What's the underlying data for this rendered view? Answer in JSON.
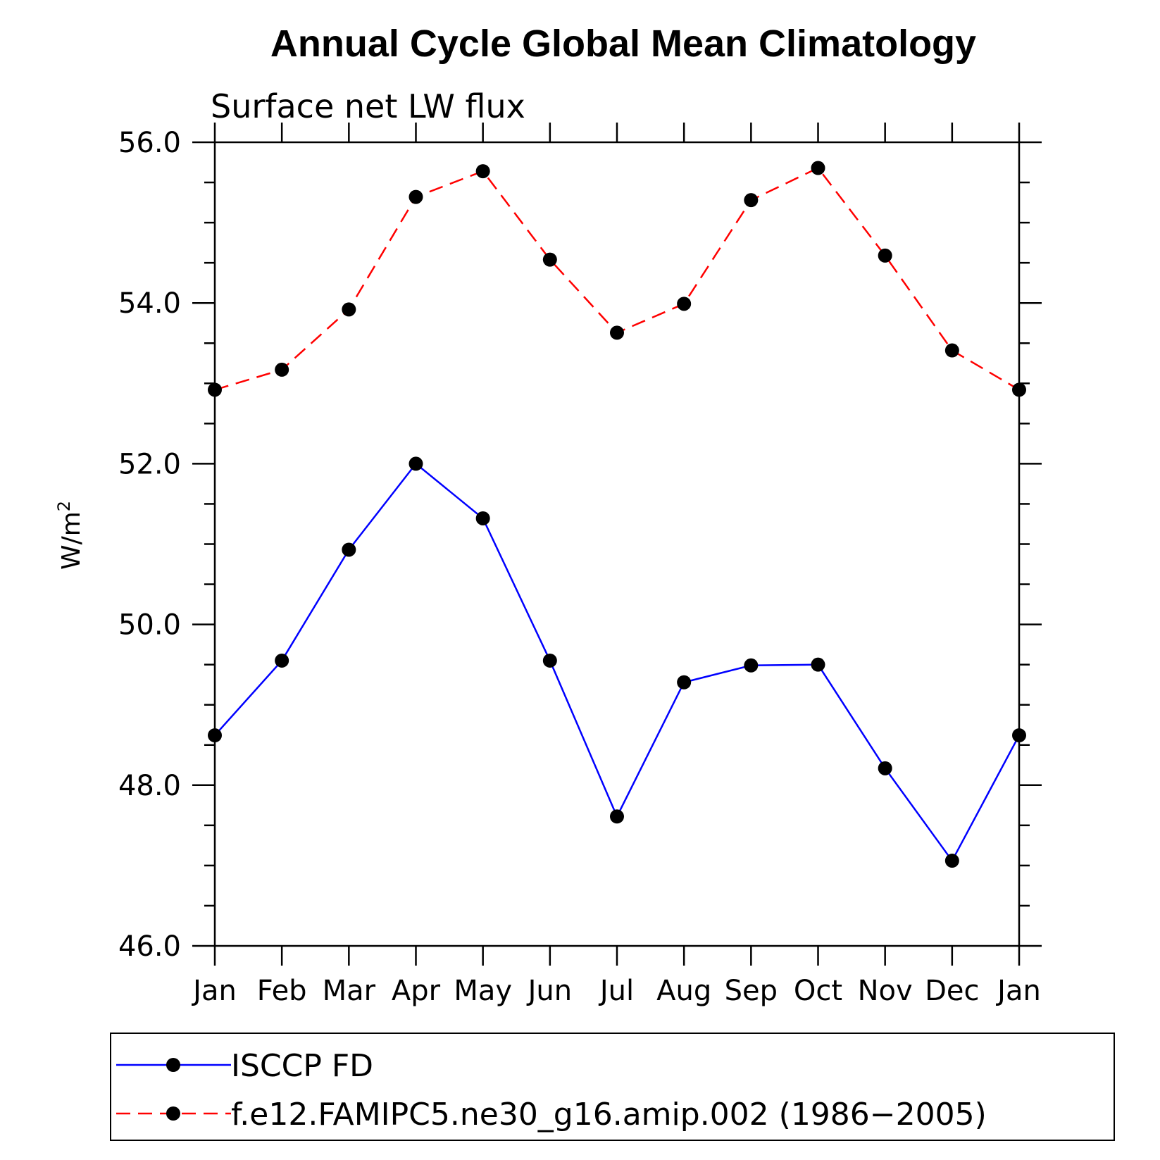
{
  "title": "Annual Cycle Global Mean Climatology",
  "subtitle": "Surface net LW flux",
  "chart_data": {
    "type": "line",
    "title": "Annual Cycle Global Mean Climatology",
    "subtitle": "Surface net LW flux",
    "xlabel": "",
    "ylabel": "W/m",
    "ylabel_superscript": "2",
    "categories": [
      "Jan",
      "Feb",
      "Mar",
      "Apr",
      "May",
      "Jun",
      "Jul",
      "Aug",
      "Sep",
      "Oct",
      "Nov",
      "Dec",
      "Jan"
    ],
    "ylim": [
      46.0,
      56.0
    ],
    "yticks": [
      "46.0",
      "48.0",
      "50.0",
      "52.0",
      "54.0",
      "56.0"
    ],
    "ytick_values": [
      46,
      48,
      50,
      52,
      54,
      56
    ],
    "grid": false,
    "legend_position": "bottom",
    "series": [
      {
        "name": "ISCCP FD",
        "color": "#0000ff",
        "style": "solid",
        "marker": "filled-circle",
        "values": [
          48.62,
          49.55,
          50.93,
          52.0,
          51.32,
          49.55,
          47.61,
          49.28,
          49.49,
          49.5,
          48.21,
          47.06,
          48.62
        ]
      },
      {
        "name": "f.e12.FAMIPC5.ne30_g16.amip.002 (1986-2005)",
        "color": "#ff0000",
        "style": "dashed",
        "marker": "filled-circle",
        "values": [
          52.92,
          53.17,
          53.92,
          55.32,
          55.64,
          54.54,
          53.63,
          53.99,
          55.28,
          55.68,
          54.59,
          53.41,
          52.92
        ]
      }
    ]
  },
  "legend": {
    "items": [
      {
        "label": "ISCCP FD",
        "color": "#0000ff",
        "style": "solid"
      },
      {
        "label": "f.e12.FAMIPC5.ne30_g16.amip.002 (1986−2005)",
        "color": "#ff0000",
        "style": "dashed"
      }
    ]
  }
}
